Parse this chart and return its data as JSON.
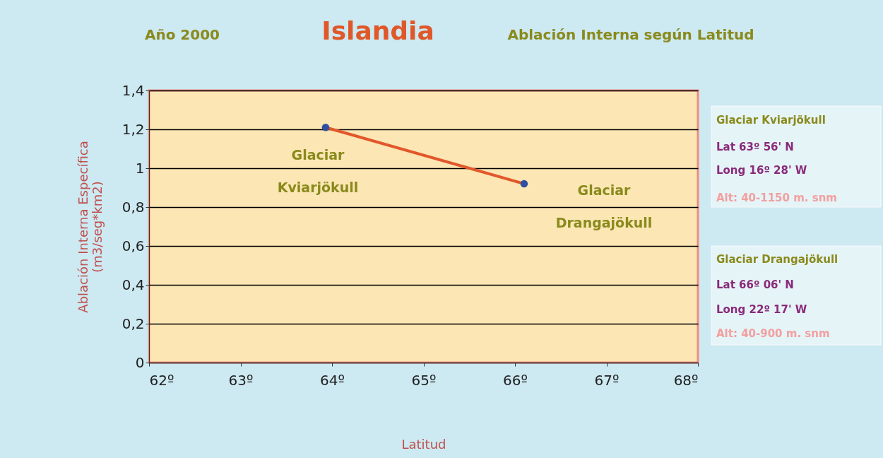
{
  "chart_data": {
    "type": "line",
    "title": "Islandia",
    "xlabel": "Latitud",
    "ylabel": "Ablación Interna Específica\n(m3/seg*km2)",
    "x": [
      63.93,
      66.1
    ],
    "series": [
      {
        "color": "#e2572b",
        "colors": [
          "#2f4f9f",
          "#2f4f9f"
        ],
        "values": [
          1.21,
          0.92
        ]
      }
    ],
    "xlim": [
      62,
      68
    ],
    "xticks": [
      {
        "value": 62,
        "label": "62º"
      },
      {
        "value": 63,
        "label": "63º"
      },
      {
        "value": 64,
        "label": "64º"
      },
      {
        "value": 65,
        "label": "65º"
      },
      {
        "value": 66,
        "label": "66º"
      },
      {
        "value": 67,
        "label": "67º"
      },
      {
        "value": 68,
        "label": "68º"
      }
    ],
    "ylim": [
      0,
      1.4
    ],
    "yticks": [
      0,
      {
        "value": 0.2,
        "label": "0,2"
      },
      {
        "value": 0.4,
        "label": "0,4"
      },
      {
        "value": 0.6,
        "label": "0,6"
      },
      {
        "value": 0.8,
        "label": "0,8"
      },
      1,
      {
        "value": 1.2,
        "label": "1,2"
      },
      {
        "value": 1.4,
        "label": "1,4"
      }
    ],
    "grid": "y",
    "marker": "circle",
    "line_style": "solid",
    "annotations": [
      "Año 2000",
      "Ablación Interna según Latitud",
      "Glaciar Kviarjökull",
      "Glaciar Drangajökull",
      "Glaciar Kviarjökull",
      "Lat 63º 56' N",
      "Long 16º 28' W",
      "Alt: 40-1150 m. snm",
      "Glaciar Drangajökull",
      "Lat 66º 06' N",
      "Long 22º 17' W",
      "Alt: 40-900 m. snm"
    ]
  }
}
